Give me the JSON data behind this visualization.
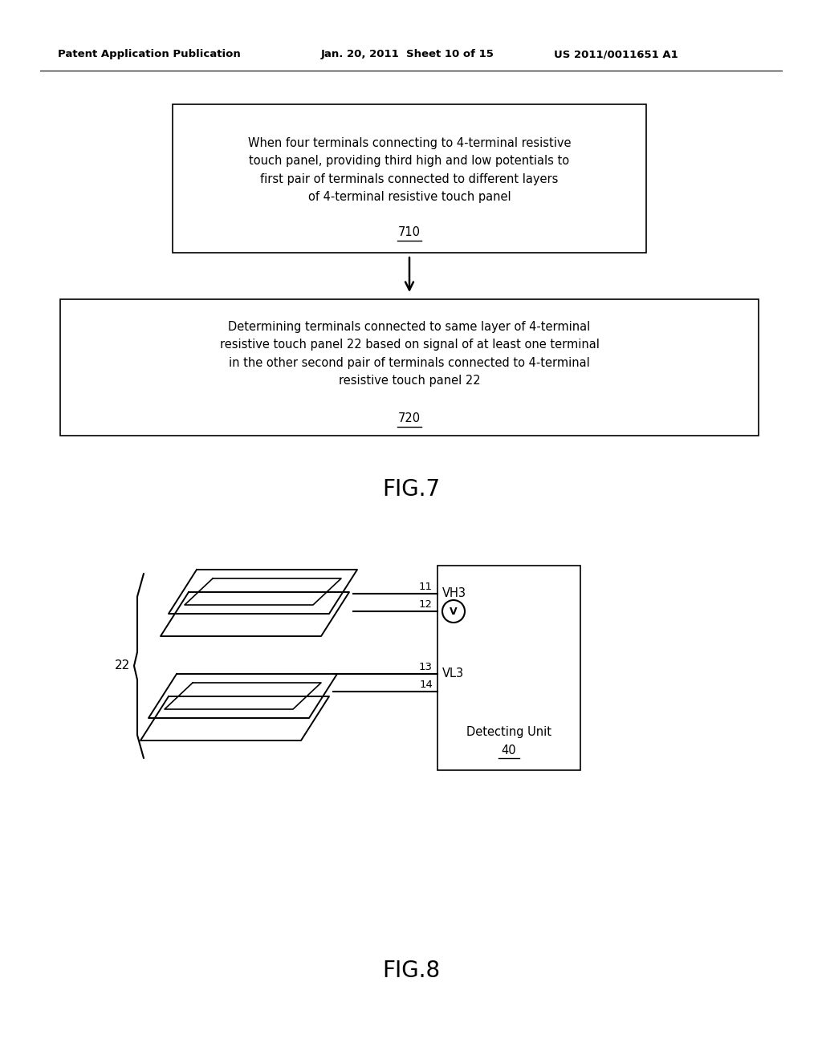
{
  "bg_color": "#ffffff",
  "header_left": "Patent Application Publication",
  "header_mid": "Jan. 20, 2011  Sheet 10 of 15",
  "header_right": "US 2011/0011651 A1",
  "box1_text": "When four terminals connecting to 4-terminal resistive\ntouch panel, providing third high and low potentials to\nfirst pair of terminals connected to different layers\nof 4-terminal resistive touch panel",
  "box1_label": "710",
  "box2_text": "Determining terminals connected to same layer of 4-terminal\nresistive touch panel 22 based on signal of at least one terminal\nin the other second pair of terminals connected to 4-terminal\nresistive touch panel 22",
  "box2_label": "720",
  "fig7_label": "FIG.7",
  "fig8_label": "FIG.8",
  "panel_label": "22",
  "detect_label1": "Detecting Unit",
  "detect_label2": "40",
  "vh3_label": "VH3",
  "vl3_label": "VL3",
  "v_label": "V",
  "line_labels": [
    "11",
    "12",
    "13",
    "14"
  ]
}
